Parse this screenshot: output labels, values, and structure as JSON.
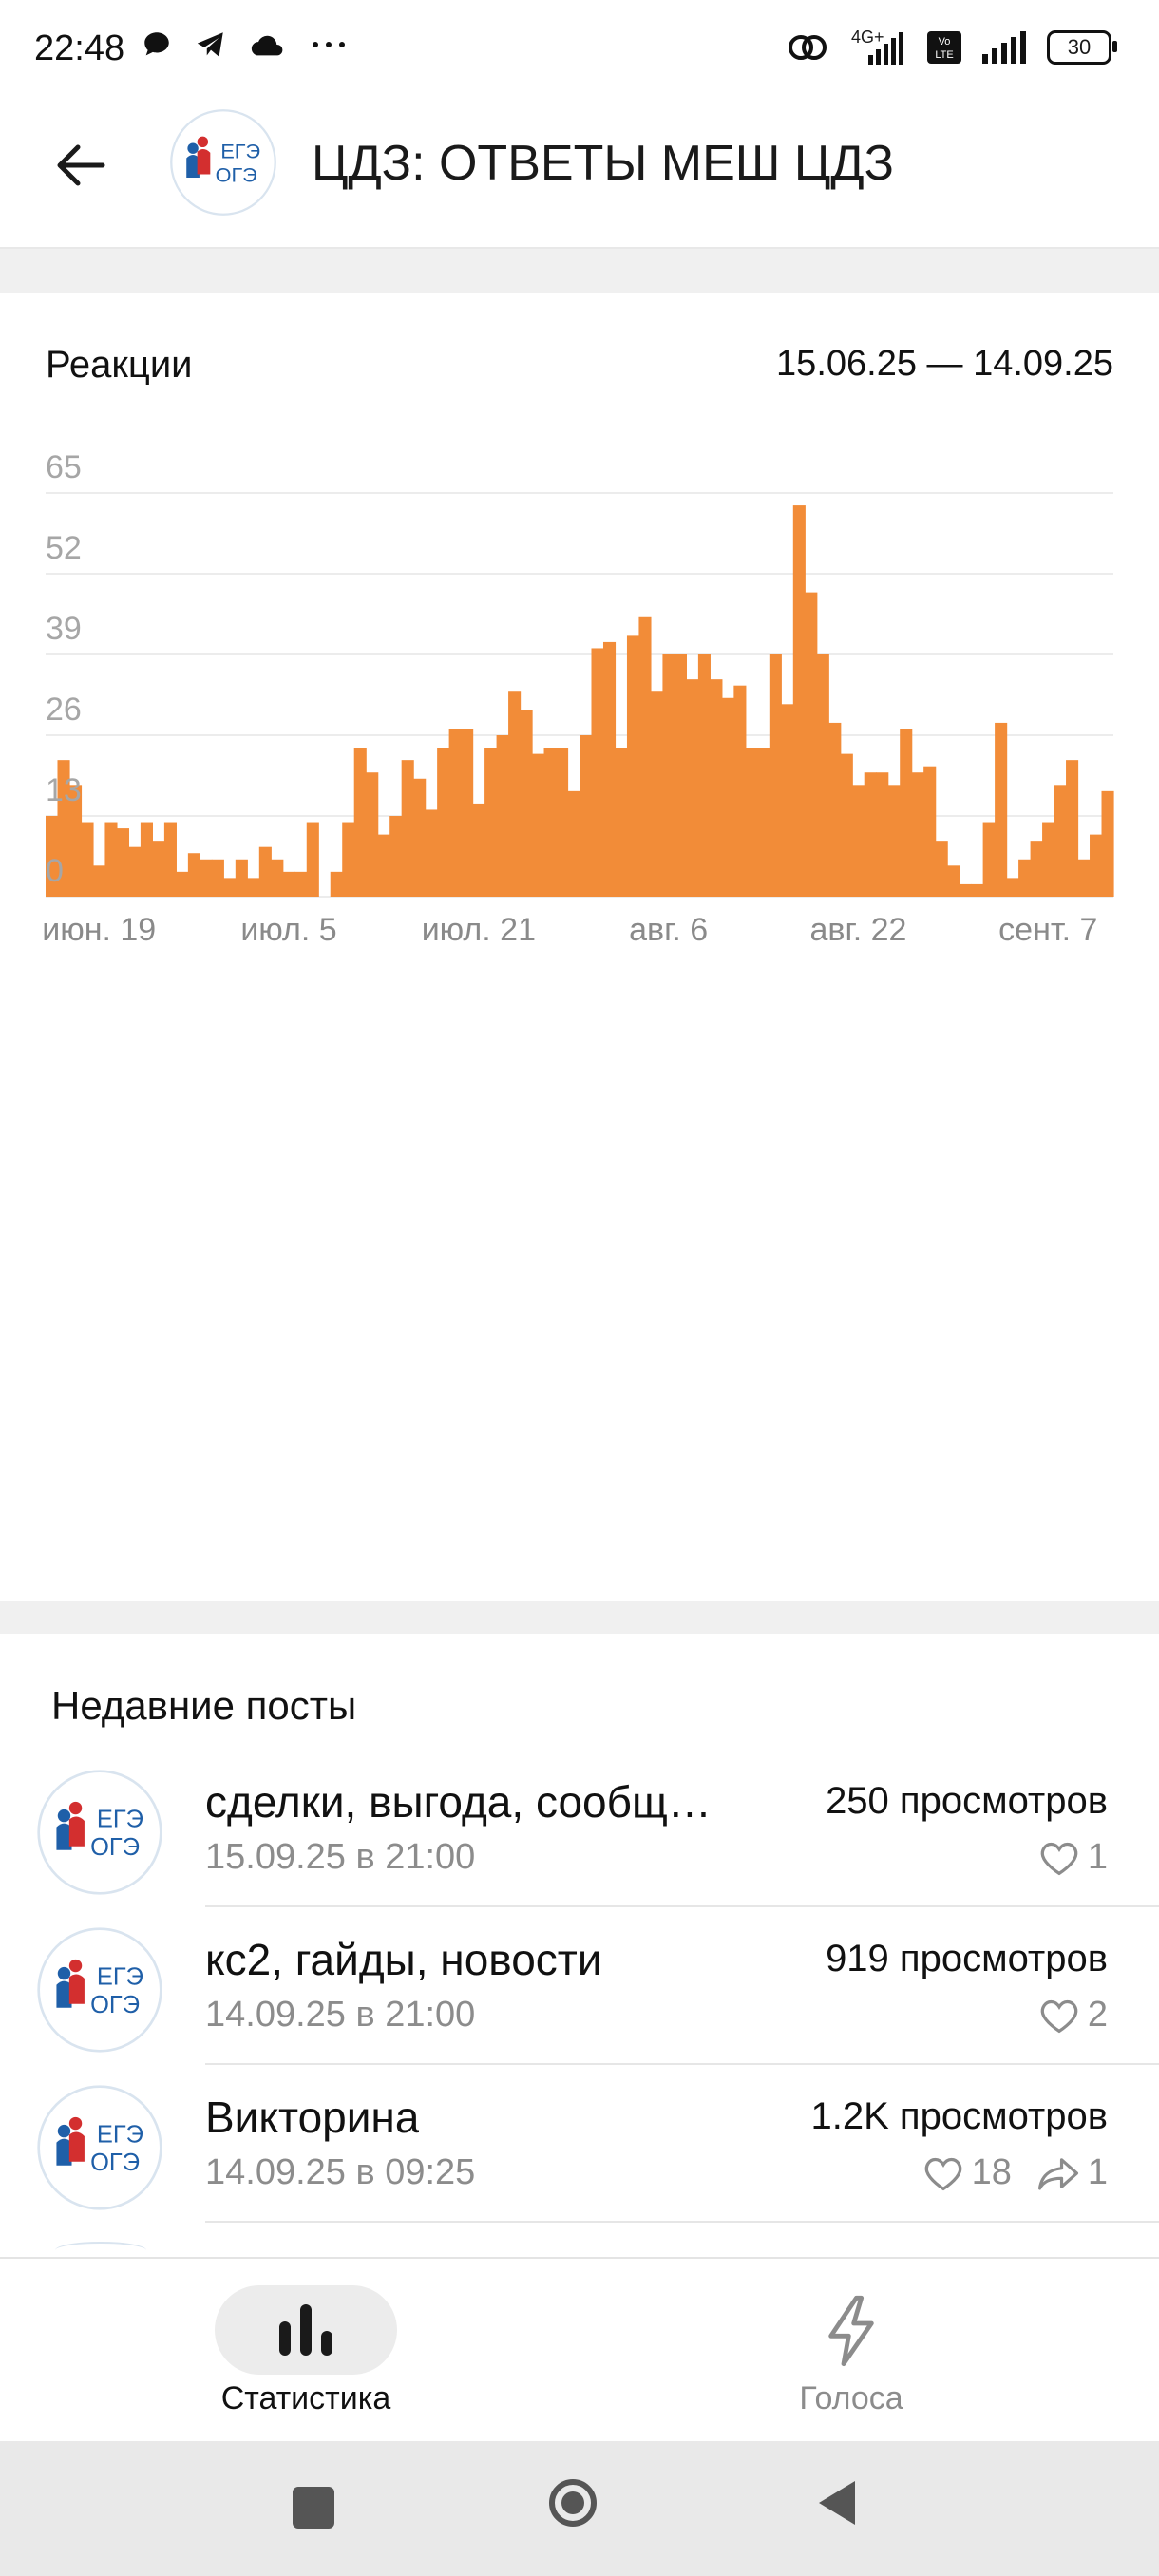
{
  "status_bar": {
    "time": "22:48",
    "network": "4G+",
    "battery": "30",
    "icons": [
      "chat-icon",
      "telegram-icon",
      "cloud-icon",
      "more-dots-icon",
      "hotspot-icon",
      "signal-icon",
      "volte-icon",
      "signal-icon"
    ]
  },
  "header": {
    "title": "ЦДЗ: ОТВЕТЫ МЕШ ЦДЗ",
    "avatar_text_top": "ЕГЭ",
    "avatar_text_bottom": "ОГЭ"
  },
  "card": {
    "title": "Реакции",
    "date_range": "15.06.25 — 14.09.25"
  },
  "chart_data": {
    "type": "bar",
    "title": "Реакции",
    "bar_color": "#f28c38",
    "ylim": [
      0,
      65
    ],
    "y_ticks": [
      "0",
      "13",
      "26",
      "39",
      "52",
      "65"
    ],
    "x_ticks": [
      {
        "label": "июн. 19",
        "index": 4
      },
      {
        "label": "июл. 5",
        "index": 20
      },
      {
        "label": "июл. 21",
        "index": 36
      },
      {
        "label": "авг. 6",
        "index": 52
      },
      {
        "label": "авг. 22",
        "index": 68
      },
      {
        "label": "сент. 7",
        "index": 84
      }
    ],
    "grid": true,
    "values": [
      13,
      22,
      18,
      12,
      5,
      12,
      11,
      8,
      12,
      9,
      12,
      4,
      7,
      6,
      6,
      3,
      6,
      3,
      8,
      6,
      4,
      4,
      12,
      0,
      4,
      12,
      24,
      20,
      10,
      13,
      22,
      19,
      14,
      24,
      27,
      27,
      15,
      24,
      26,
      33,
      30,
      23,
      24,
      24,
      17,
      26,
      40,
      41,
      24,
      42,
      45,
      33,
      39,
      39,
      35,
      39,
      35,
      32,
      34,
      24,
      24,
      39,
      31,
      63,
      49,
      39,
      28,
      23,
      18,
      20,
      20,
      18,
      27,
      20,
      21,
      9,
      5,
      2,
      2,
      12,
      28,
      3,
      6,
      9,
      12,
      18,
      22,
      6,
      10,
      17
    ]
  },
  "section": {
    "title": "Недавние посты"
  },
  "posts": [
    {
      "title": "сделки, выгода, сообщ…",
      "date": "15.09.25 в 21:00",
      "views": "250 просмотров",
      "likes": "1"
    },
    {
      "title": "кс2, гайды, новости",
      "date": "14.09.25 в 21:00",
      "views": "919 просмотров",
      "likes": "2"
    },
    {
      "title": "Викторина",
      "date": "14.09.25 в 09:25",
      "views": "1.2K просмотров",
      "likes": "18",
      "shares": "1"
    }
  ],
  "bottom_nav": {
    "items": [
      {
        "label": "Статистика",
        "icon": "bar-chart-icon",
        "active": true
      },
      {
        "label": "Голоса",
        "icon": "lightning-icon",
        "active": false
      }
    ]
  },
  "colors": {
    "accent": "#f28c38",
    "logo_blue": "#1f5fa8",
    "logo_red": "#d32f2f"
  }
}
